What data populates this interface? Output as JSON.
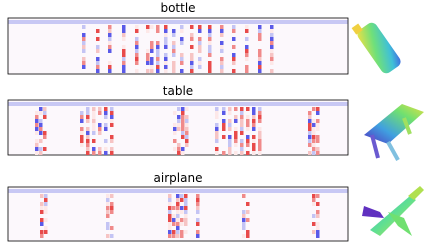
{
  "panels": [
    {
      "title": "bottle"
    },
    {
      "title": "table"
    },
    {
      "title": "airplane"
    }
  ]
}
